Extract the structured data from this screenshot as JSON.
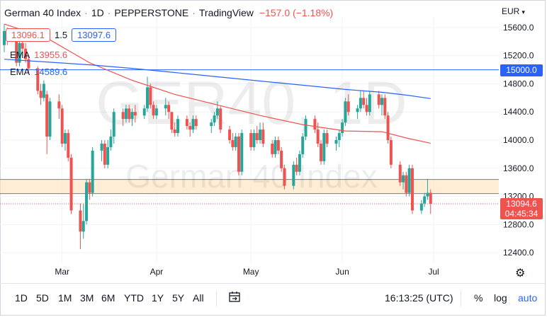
{
  "header": {
    "title": "German 40 Index",
    "interval": "1D",
    "broker": "PEPPERSTONE",
    "platform": "TradingView",
    "change": "−157.0 (−1.18%)",
    "currency": "EUR",
    "bid": "13096.1",
    "spread": "1.5",
    "ask": "13097.6"
  },
  "indicators": [
    {
      "label": "EMA",
      "value": "13955.6",
      "color": "#ef5350"
    },
    {
      "label": "EMA",
      "value": "14589.6",
      "color": "#2962ff"
    }
  ],
  "watermark": {
    "symbol": "GER40, 1D",
    "name": "German 40 Index"
  },
  "price_label": {
    "value": "13094.6",
    "countdown": "04:45:34"
  },
  "hline_label": "15000.0",
  "toolbar": {
    "ranges": [
      "1D",
      "5D",
      "1M",
      "3M",
      "6M",
      "YTD",
      "1Y",
      "5Y",
      "All"
    ],
    "time": "16:13:25 (UTC)",
    "percent": "%",
    "log": "log",
    "auto": "auto",
    "compare_icon": "calendar-range-icon",
    "settings_icon": "gear-icon"
  },
  "chart_data": {
    "type": "candlestick",
    "symbol": "GER40",
    "y_ticks": [
      "15600.0",
      "15200.0",
      "14800.0",
      "14400.0",
      "14000.0",
      "13600.0",
      "13200.0",
      "12800.0",
      "12400.0"
    ],
    "x_ticks": [
      {
        "label": "Mar",
        "date": "2022-03-01"
      },
      {
        "label": "Apr",
        "date": "2022-04-01"
      },
      {
        "label": "May",
        "date": "2022-05-02"
      },
      {
        "label": "Jun",
        "date": "2022-06-01"
      },
      {
        "label": "Jul",
        "date": "2022-07-01"
      }
    ],
    "ylim": [
      12250,
      15750
    ],
    "xlim": [
      "2022-02-10",
      "2022-07-21"
    ],
    "horizontal_lines": [
      {
        "y": 15000,
        "color": "#2962ff"
      }
    ],
    "support_zone": {
      "y_low": 13240,
      "y_high": 13440,
      "color": "#ffe0b2"
    },
    "candles": [
      {
        "date": "2022-02-10",
        "o": 15350,
        "h": 15650,
        "l": 15250,
        "c": 15550
      },
      {
        "date": "2022-02-11",
        "o": 15550,
        "h": 15600,
        "l": 15350,
        "c": 15420
      },
      {
        "date": "2022-02-14",
        "o": 15420,
        "h": 15450,
        "l": 15050,
        "c": 15100
      },
      {
        "date": "2022-02-15",
        "o": 15100,
        "h": 15420,
        "l": 15050,
        "c": 15380
      },
      {
        "date": "2022-02-16",
        "o": 15380,
        "h": 15450,
        "l": 15250,
        "c": 15300
      },
      {
        "date": "2022-02-17",
        "o": 15300,
        "h": 15380,
        "l": 15100,
        "c": 15150
      },
      {
        "date": "2022-02-18",
        "o": 15150,
        "h": 15200,
        "l": 14950,
        "c": 15020
      },
      {
        "date": "2022-02-21",
        "o": 15020,
        "h": 15050,
        "l": 14650,
        "c": 14700
      },
      {
        "date": "2022-02-22",
        "o": 14700,
        "h": 14800,
        "l": 14500,
        "c": 14600
      },
      {
        "date": "2022-02-23",
        "o": 14600,
        "h": 14850,
        "l": 14550,
        "c": 14800
      },
      {
        "date": "2022-02-24",
        "o": 14650,
        "h": 14700,
        "l": 13800,
        "c": 14050
      },
      {
        "date": "2022-02-25",
        "o": 14050,
        "h": 14600,
        "l": 14000,
        "c": 14550
      },
      {
        "date": "2022-02-28",
        "o": 14550,
        "h": 14650,
        "l": 14300,
        "c": 14450
      },
      {
        "date": "2022-03-01",
        "o": 14450,
        "h": 14500,
        "l": 13900,
        "c": 13950
      },
      {
        "date": "2022-03-02",
        "o": 13950,
        "h": 14150,
        "l": 13850,
        "c": 14100
      },
      {
        "date": "2022-03-03",
        "o": 14100,
        "h": 14150,
        "l": 13700,
        "c": 13750
      },
      {
        "date": "2022-03-04",
        "o": 13750,
        "h": 13800,
        "l": 12950,
        "c": 13000
      },
      {
        "date": "2022-03-07",
        "o": 13000,
        "h": 13100,
        "l": 12450,
        "c": 12700
      },
      {
        "date": "2022-03-08",
        "o": 12700,
        "h": 13100,
        "l": 12600,
        "c": 12850
      },
      {
        "date": "2022-03-09",
        "o": 12850,
        "h": 13450,
        "l": 12800,
        "c": 13400
      },
      {
        "date": "2022-03-10",
        "o": 13400,
        "h": 13450,
        "l": 13150,
        "c": 13250
      },
      {
        "date": "2022-03-11",
        "o": 13250,
        "h": 13900,
        "l": 13200,
        "c": 13850
      },
      {
        "date": "2022-03-14",
        "o": 13850,
        "h": 14000,
        "l": 13700,
        "c": 13950
      },
      {
        "date": "2022-03-15",
        "o": 13950,
        "h": 14000,
        "l": 13600,
        "c": 13650
      },
      {
        "date": "2022-03-16",
        "o": 13650,
        "h": 14000,
        "l": 13600,
        "c": 13900
      },
      {
        "date": "2022-03-17",
        "o": 13900,
        "h": 14150,
        "l": 13850,
        "c": 14050
      },
      {
        "date": "2022-03-18",
        "o": 14050,
        "h": 14450,
        "l": 13950,
        "c": 14400
      },
      {
        "date": "2022-03-21",
        "o": 14400,
        "h": 14450,
        "l": 14200,
        "c": 14300
      },
      {
        "date": "2022-03-22",
        "o": 14300,
        "h": 14500,
        "l": 14250,
        "c": 14450
      },
      {
        "date": "2022-03-23",
        "o": 14450,
        "h": 14500,
        "l": 14250,
        "c": 14300
      },
      {
        "date": "2022-03-24",
        "o": 14300,
        "h": 14450,
        "l": 14200,
        "c": 14400
      },
      {
        "date": "2022-03-25",
        "o": 14400,
        "h": 14500,
        "l": 14250,
        "c": 14350
      },
      {
        "date": "2022-03-28",
        "o": 14350,
        "h": 14500,
        "l": 14300,
        "c": 14450
      },
      {
        "date": "2022-03-29",
        "o": 14450,
        "h": 14900,
        "l": 14400,
        "c": 14750
      },
      {
        "date": "2022-03-30",
        "o": 14750,
        "h": 14800,
        "l": 14450,
        "c": 14500
      },
      {
        "date": "2022-03-31",
        "o": 14500,
        "h": 14550,
        "l": 14300,
        "c": 14350
      },
      {
        "date": "2022-04-01",
        "o": 14350,
        "h": 14500,
        "l": 14300,
        "c": 14450
      },
      {
        "date": "2022-04-04",
        "o": 14450,
        "h": 14600,
        "l": 14350,
        "c": 14500
      },
      {
        "date": "2022-04-05",
        "o": 14500,
        "h": 14550,
        "l": 14300,
        "c": 14400
      },
      {
        "date": "2022-04-06",
        "o": 14400,
        "h": 14400,
        "l": 14100,
        "c": 14150
      },
      {
        "date": "2022-04-07",
        "o": 14150,
        "h": 14250,
        "l": 14050,
        "c": 14100
      },
      {
        "date": "2022-04-08",
        "o": 14100,
        "h": 14350,
        "l": 14050,
        "c": 14300
      },
      {
        "date": "2022-04-11",
        "o": 14300,
        "h": 14350,
        "l": 14150,
        "c": 14200
      },
      {
        "date": "2022-04-12",
        "o": 14200,
        "h": 14250,
        "l": 14050,
        "c": 14150
      },
      {
        "date": "2022-04-13",
        "o": 14150,
        "h": 14350,
        "l": 14100,
        "c": 14300
      },
      {
        "date": "2022-04-14",
        "o": 14300,
        "h": 14350,
        "l": 14150,
        "c": 14200
      },
      {
        "date": "2022-04-19",
        "o": 14200,
        "h": 14300,
        "l": 14100,
        "c": 14250
      },
      {
        "date": "2022-04-20",
        "o": 14250,
        "h": 14400,
        "l": 14200,
        "c": 14350
      },
      {
        "date": "2022-04-21",
        "o": 14350,
        "h": 14550,
        "l": 14300,
        "c": 14450
      },
      {
        "date": "2022-04-22",
        "o": 14450,
        "h": 14480,
        "l": 14100,
        "c": 14150
      },
      {
        "date": "2022-04-25",
        "o": 14150,
        "h": 14200,
        "l": 13950,
        "c": 14000
      },
      {
        "date": "2022-04-26",
        "o": 14000,
        "h": 14100,
        "l": 13850,
        "c": 13900
      },
      {
        "date": "2022-04-27",
        "o": 13900,
        "h": 14100,
        "l": 13850,
        "c": 14050
      },
      {
        "date": "2022-04-28",
        "o": 14050,
        "h": 14100,
        "l": 13500,
        "c": 13550
      },
      {
        "date": "2022-04-29",
        "o": 13550,
        "h": 14150,
        "l": 13500,
        "c": 14100
      },
      {
        "date": "2022-05-02",
        "o": 14100,
        "h": 14150,
        "l": 13850,
        "c": 13900
      },
      {
        "date": "2022-05-03",
        "o": 13900,
        "h": 14150,
        "l": 13850,
        "c": 14100
      },
      {
        "date": "2022-05-04",
        "o": 14100,
        "h": 14200,
        "l": 13950,
        "c": 14000
      },
      {
        "date": "2022-05-05",
        "o": 14000,
        "h": 14250,
        "l": 13950,
        "c": 14150
      },
      {
        "date": "2022-05-06",
        "o": 14150,
        "h": 14250,
        "l": 13900,
        "c": 13950
      },
      {
        "date": "2022-05-09",
        "o": 13950,
        "h": 14000,
        "l": 13750,
        "c": 13800
      },
      {
        "date": "2022-05-10",
        "o": 13800,
        "h": 14050,
        "l": 13750,
        "c": 14000
      },
      {
        "date": "2022-05-11",
        "o": 14000,
        "h": 14050,
        "l": 13800,
        "c": 13850
      },
      {
        "date": "2022-05-12",
        "o": 13850,
        "h": 13900,
        "l": 13550,
        "c": 13600
      },
      {
        "date": "2022-05-13",
        "o": 13600,
        "h": 13650,
        "l": 13300,
        "c": 13350
      },
      {
        "date": "2022-05-16",
        "o": 13350,
        "h": 13700,
        "l": 13300,
        "c": 13650
      },
      {
        "date": "2022-05-17",
        "o": 13650,
        "h": 13750,
        "l": 13500,
        "c": 13550
      },
      {
        "date": "2022-05-18",
        "o": 13550,
        "h": 13850,
        "l": 13500,
        "c": 13800
      },
      {
        "date": "2022-05-19",
        "o": 13800,
        "h": 14100,
        "l": 13750,
        "c": 14050
      },
      {
        "date": "2022-05-20",
        "o": 14050,
        "h": 14350,
        "l": 14000,
        "c": 14300
      },
      {
        "date": "2022-05-23",
        "o": 14300,
        "h": 14350,
        "l": 14100,
        "c": 14150
      },
      {
        "date": "2022-05-24",
        "o": 14150,
        "h": 14250,
        "l": 13900,
        "c": 13950
      },
      {
        "date": "2022-05-25",
        "o": 13950,
        "h": 14000,
        "l": 13650,
        "c": 13700
      },
      {
        "date": "2022-05-26",
        "o": 13700,
        "h": 14150,
        "l": 13650,
        "c": 14100
      },
      {
        "date": "2022-05-27",
        "o": 14100,
        "h": 14150,
        "l": 13900,
        "c": 13950
      },
      {
        "date": "2022-05-30",
        "o": 13950,
        "h": 14050,
        "l": 13850,
        "c": 14000
      },
      {
        "date": "2022-05-31",
        "o": 14000,
        "h": 14150,
        "l": 13900,
        "c": 14100
      },
      {
        "date": "2022-06-01",
        "o": 14100,
        "h": 14300,
        "l": 14050,
        "c": 14250
      },
      {
        "date": "2022-06-02",
        "o": 14250,
        "h": 14600,
        "l": 14200,
        "c": 14550
      },
      {
        "date": "2022-06-03",
        "o": 14550,
        "h": 14650,
        "l": 14350,
        "c": 14400
      },
      {
        "date": "2022-06-06",
        "o": 14400,
        "h": 14500,
        "l": 14300,
        "c": 14450
      },
      {
        "date": "2022-06-07",
        "o": 14450,
        "h": 14700,
        "l": 14400,
        "c": 14600
      },
      {
        "date": "2022-06-08",
        "o": 14600,
        "h": 14700,
        "l": 14450,
        "c": 14500
      },
      {
        "date": "2022-06-09",
        "o": 14500,
        "h": 14600,
        "l": 14350,
        "c": 14400
      },
      {
        "date": "2022-06-10",
        "o": 14400,
        "h": 14700,
        "l": 14350,
        "c": 14650
      },
      {
        "date": "2022-06-13",
        "o": 14650,
        "h": 14700,
        "l": 14450,
        "c": 14500
      },
      {
        "date": "2022-06-14",
        "o": 14500,
        "h": 14650,
        "l": 14350,
        "c": 14600
      },
      {
        "date": "2022-06-15",
        "o": 14600,
        "h": 14650,
        "l": 14300,
        "c": 14350
      },
      {
        "date": "2022-06-16",
        "o": 14350,
        "h": 14400,
        "l": 13950,
        "c": 14000
      },
      {
        "date": "2022-06-17",
        "o": 14000,
        "h": 14050,
        "l": 13600,
        "c": 13650
      },
      {
        "date": "2022-06-20",
        "o": 13650,
        "h": 13700,
        "l": 13350,
        "c": 13400
      },
      {
        "date": "2022-06-21",
        "o": 13400,
        "h": 13550,
        "l": 13300,
        "c": 13500
      },
      {
        "date": "2022-06-22",
        "o": 13500,
        "h": 13550,
        "l": 13200,
        "c": 13250
      },
      {
        "date": "2022-06-23",
        "o": 13250,
        "h": 13650,
        "l": 13200,
        "c": 13600
      },
      {
        "date": "2022-06-24",
        "o": 13600,
        "h": 13650,
        "l": 12950,
        "c": 13000
      },
      {
        "date": "2022-06-27",
        "o": 13000,
        "h": 13150,
        "l": 12950,
        "c": 13100
      },
      {
        "date": "2022-06-28",
        "o": 13100,
        "h": 13250,
        "l": 13050,
        "c": 13200
      },
      {
        "date": "2022-06-29",
        "o": 13200,
        "h": 13450,
        "l": 13150,
        "c": 13250
      },
      {
        "date": "2022-06-30",
        "o": 13250,
        "h": 13300,
        "l": 12950,
        "c": 13095
      }
    ],
    "series": [
      {
        "name": "EMA",
        "color": "#ef5350",
        "points": [
          [
            "2022-02-10",
            15650
          ],
          [
            "2022-02-24",
            15450
          ],
          [
            "2022-03-10",
            15100
          ],
          [
            "2022-03-24",
            14850
          ],
          [
            "2022-04-07",
            14650
          ],
          [
            "2022-04-21",
            14500
          ],
          [
            "2022-05-05",
            14350
          ],
          [
            "2022-05-19",
            14220
          ],
          [
            "2022-06-02",
            14130
          ],
          [
            "2022-06-14",
            14120
          ],
          [
            "2022-06-22",
            14030
          ],
          [
            "2022-06-30",
            13956
          ]
        ]
      },
      {
        "name": "EMA",
        "color": "#2962ff",
        "points": [
          [
            "2022-02-10",
            15150
          ],
          [
            "2022-02-24",
            15110
          ],
          [
            "2022-03-10",
            15070
          ],
          [
            "2022-03-24",
            15020
          ],
          [
            "2022-04-07",
            14960
          ],
          [
            "2022-04-21",
            14900
          ],
          [
            "2022-05-05",
            14840
          ],
          [
            "2022-05-19",
            14780
          ],
          [
            "2022-06-02",
            14720
          ],
          [
            "2022-06-14",
            14680
          ],
          [
            "2022-06-22",
            14640
          ],
          [
            "2022-06-30",
            14590
          ]
        ]
      }
    ]
  }
}
